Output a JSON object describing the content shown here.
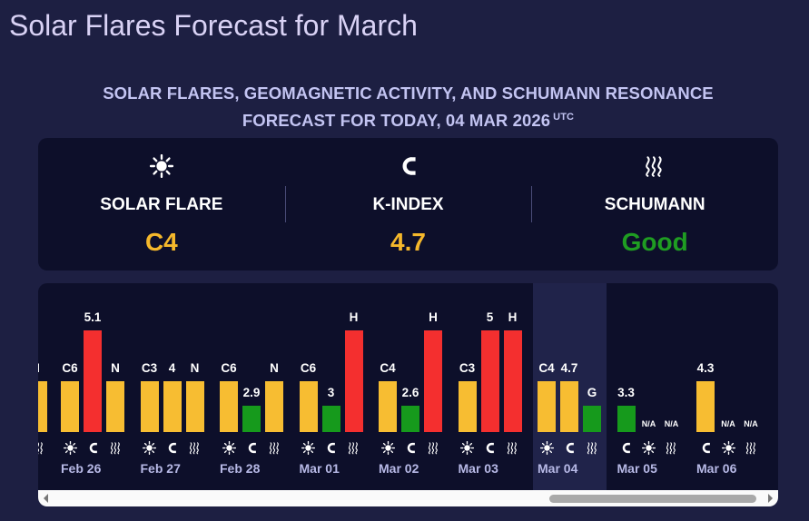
{
  "page": {
    "title": "Solar Flares Forecast for March",
    "subtitle_line1": "SOLAR FLARES, GEOMAGNETIC ACTIVITY, AND SCHUMANN RESONANCE",
    "subtitle_line2": "FORECAST FOR TODAY, 04 MAR 2026",
    "subtitle_sup": "UTC"
  },
  "summary": [
    {
      "icon": "sun-icon",
      "label": "SOLAR FLARE",
      "value": "C4",
      "color": "#f5b82b"
    },
    {
      "icon": "magnet-icon",
      "label": "K-INDEX",
      "value": "4.7",
      "color": "#f5b82b"
    },
    {
      "icon": "waves-icon",
      "label": "SCHUMANN",
      "value": "Good",
      "color": "#1f9d22"
    }
  ],
  "colors": {
    "yellow": "#f7bd32",
    "red": "#f42f2f",
    "green": "#169a1c",
    "background": "#1d1f42",
    "panel": "#0d0f2a"
  },
  "forecast": {
    "partial_day": {
      "bars": [
        {
          "label": "I",
          "level": 0.45,
          "color": "yellow"
        }
      ],
      "icons": [
        "waves-icon"
      ]
    },
    "days": [
      {
        "date": "Feb 26",
        "bars": [
          {
            "label": "C6",
            "level": 0.45,
            "color": "yellow"
          },
          {
            "label": "5.1",
            "level": 0.9,
            "color": "red"
          },
          {
            "label": "N",
            "level": 0.45,
            "color": "yellow"
          }
        ],
        "icons": [
          "sun-icon",
          "magnet-icon",
          "waves-icon"
        ]
      },
      {
        "date": "Feb 27",
        "bars": [
          {
            "label": "C3",
            "level": 0.45,
            "color": "yellow"
          },
          {
            "label": "4",
            "level": 0.45,
            "color": "yellow"
          },
          {
            "label": "N",
            "level": 0.45,
            "color": "yellow"
          }
        ],
        "icons": [
          "sun-icon",
          "magnet-icon",
          "waves-icon"
        ]
      },
      {
        "date": "Feb 28",
        "bars": [
          {
            "label": "C6",
            "level": 0.45,
            "color": "yellow"
          },
          {
            "label": "2.9",
            "level": 0.23,
            "color": "green"
          },
          {
            "label": "N",
            "level": 0.45,
            "color": "yellow"
          }
        ],
        "icons": [
          "sun-icon",
          "magnet-icon",
          "waves-icon"
        ]
      },
      {
        "date": "Mar 01",
        "bars": [
          {
            "label": "C6",
            "level": 0.45,
            "color": "yellow"
          },
          {
            "label": "3",
            "level": 0.23,
            "color": "green"
          },
          {
            "label": "H",
            "level": 0.9,
            "color": "red"
          }
        ],
        "icons": [
          "sun-icon",
          "magnet-icon",
          "waves-icon"
        ]
      },
      {
        "date": "Mar 02",
        "bars": [
          {
            "label": "C4",
            "level": 0.45,
            "color": "yellow"
          },
          {
            "label": "2.6",
            "level": 0.23,
            "color": "green"
          },
          {
            "label": "H",
            "level": 0.9,
            "color": "red"
          }
        ],
        "icons": [
          "sun-icon",
          "magnet-icon",
          "waves-icon"
        ]
      },
      {
        "date": "Mar 03",
        "bars": [
          {
            "label": "C3",
            "level": 0.45,
            "color": "yellow"
          },
          {
            "label": "5",
            "level": 0.9,
            "color": "red"
          },
          {
            "label": "H",
            "level": 0.9,
            "color": "red"
          }
        ],
        "icons": [
          "sun-icon",
          "magnet-icon",
          "waves-icon"
        ]
      },
      {
        "date": "Mar 04",
        "today": true,
        "bars": [
          {
            "label": "C4",
            "level": 0.45,
            "color": "yellow"
          },
          {
            "label": "4.7",
            "level": 0.45,
            "color": "yellow"
          },
          {
            "label": "G",
            "level": 0.23,
            "color": "green"
          }
        ],
        "icons": [
          "sun-icon",
          "magnet-icon",
          "waves-icon"
        ]
      },
      {
        "date": "Mar 05",
        "bars": [
          {
            "label": "3.3",
            "level": 0.23,
            "color": "green"
          },
          {
            "label": "N/A",
            "level": 0,
            "color": "none"
          },
          {
            "label": "N/A",
            "level": 0,
            "color": "none"
          }
        ],
        "icons": [
          "magnet-icon",
          "sun-icon",
          "waves-icon"
        ]
      },
      {
        "date": "Mar 06",
        "bars": [
          {
            "label": "4.3",
            "level": 0.45,
            "color": "yellow"
          },
          {
            "label": "N/A",
            "level": 0,
            "color": "none"
          },
          {
            "label": "N/A",
            "level": 0,
            "color": "none"
          }
        ],
        "icons": [
          "magnet-icon",
          "sun-icon",
          "waves-icon"
        ]
      }
    ]
  },
  "scrollbar": {
    "left_arrow_icon": "scroll-left-icon",
    "right_arrow_icon": "scroll-right-icon"
  }
}
